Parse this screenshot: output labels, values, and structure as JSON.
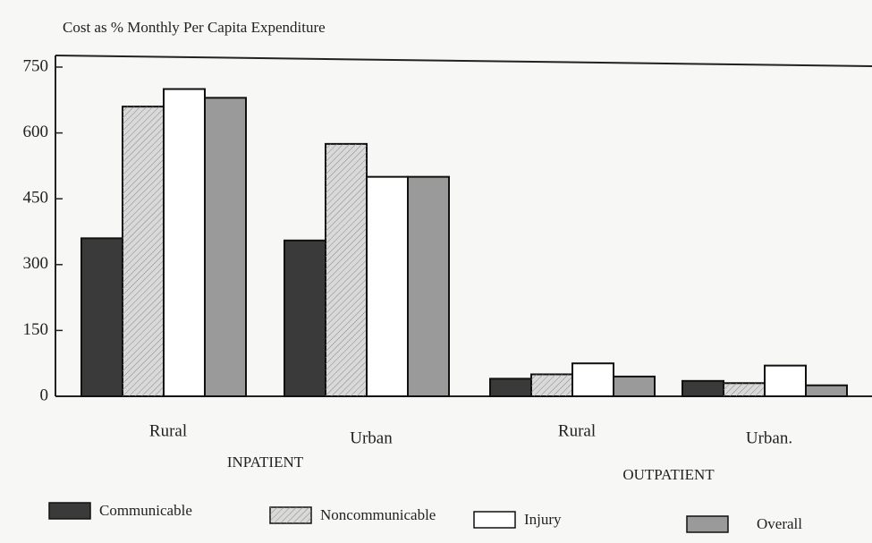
{
  "chart_data": {
    "type": "bar",
    "y_axis_label": "Cost as % Monthly Per Capita Expenditure",
    "categories": [
      "Rural",
      "Urban",
      "Rural",
      "Urban."
    ],
    "group_labels": [
      "INPATIENT",
      "OUTPATIENT"
    ],
    "series": [
      {
        "name": "Communicable",
        "color": "#3a3a3a",
        "values": [
          360,
          355,
          40,
          35
        ]
      },
      {
        "name": "Noncommunicable",
        "color": "#d9d9d9",
        "values": [
          660,
          575,
          50,
          30
        ]
      },
      {
        "name": "Injury",
        "color": "#ffffff",
        "values": [
          700,
          500,
          75,
          70
        ]
      },
      {
        "name": "Overall",
        "color": "#9a9a9a",
        "values": [
          680,
          500,
          45,
          25
        ]
      }
    ],
    "ylim": [
      0,
      750
    ],
    "yticks": [
      0,
      150,
      300,
      450,
      600,
      750
    ],
    "grid": false,
    "legend": "bottom"
  }
}
